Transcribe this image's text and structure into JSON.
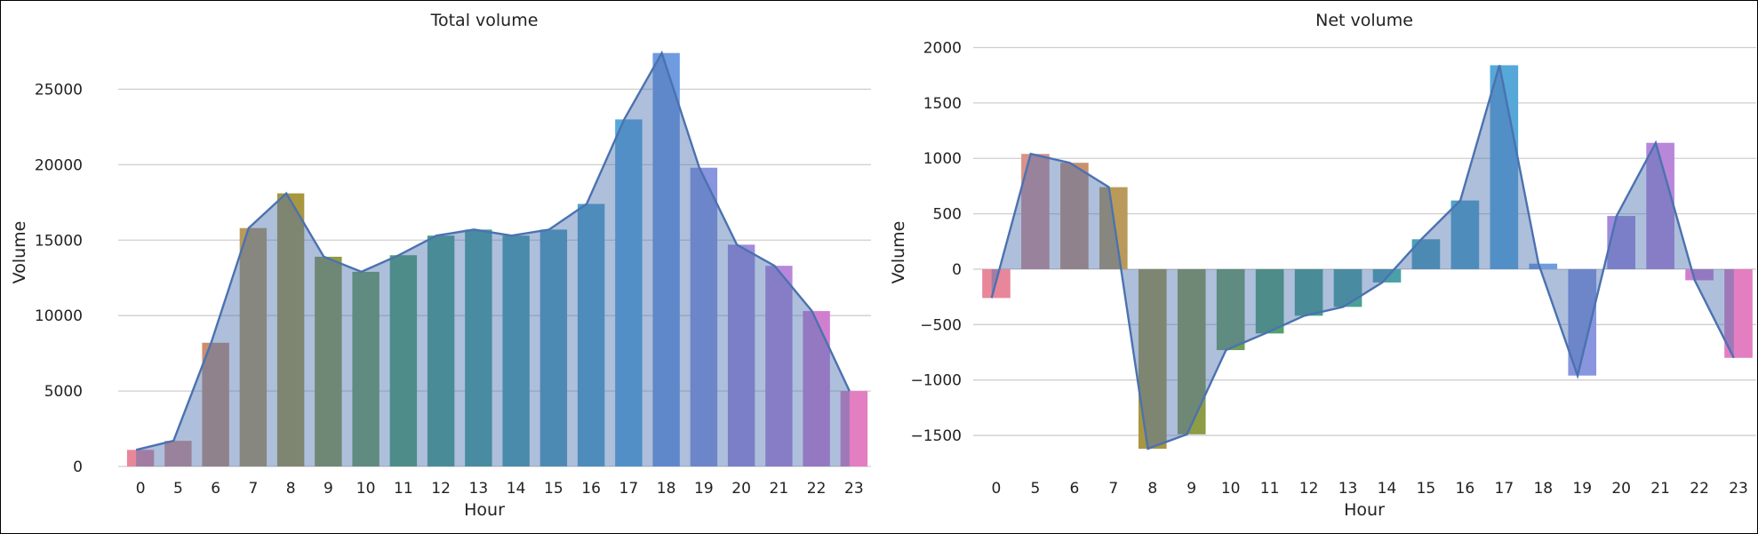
{
  "chart_data": [
    {
      "type": "bar",
      "title": "Total volume",
      "xlabel": "Hour",
      "ylabel": "Volume",
      "categories": [
        "0",
        "5",
        "6",
        "7",
        "8",
        "9",
        "10",
        "11",
        "12",
        "13",
        "14",
        "15",
        "16",
        "17",
        "18",
        "19",
        "20",
        "21",
        "22",
        "23"
      ],
      "values": [
        1100,
        1700,
        8200,
        15800,
        18100,
        13900,
        12900,
        14000,
        15300,
        15700,
        15300,
        15700,
        17400,
        23000,
        27400,
        19800,
        14700,
        13300,
        10300,
        5000
      ],
      "overlay": {
        "type": "area",
        "values": [
          1100,
          1700,
          8200,
          15800,
          18100,
          13900,
          12900,
          14000,
          15300,
          15700,
          15300,
          15700,
          17400,
          23000,
          27400,
          19800,
          14700,
          13300,
          10300,
          5000
        ]
      },
      "ylim": [
        0,
        28500
      ],
      "yticks": [
        0,
        5000,
        10000,
        15000,
        20000,
        25000
      ],
      "grid": true
    },
    {
      "type": "bar",
      "title": "Net volume",
      "xlabel": "Hour",
      "ylabel": "Volume",
      "categories": [
        "0",
        "5",
        "6",
        "7",
        "8",
        "9",
        "10",
        "11",
        "12",
        "13",
        "14",
        "15",
        "16",
        "17",
        "18",
        "19",
        "20",
        "21",
        "22",
        "23"
      ],
      "values": [
        -260,
        1040,
        960,
        740,
        -1620,
        -1490,
        -730,
        -580,
        -420,
        -340,
        -120,
        270,
        620,
        1840,
        50,
        -960,
        480,
        1140,
        -100,
        -800
      ],
      "overlay": {
        "type": "area",
        "values": [
          -260,
          1040,
          960,
          740,
          -1620,
          -1490,
          -730,
          -580,
          -420,
          -340,
          -120,
          270,
          620,
          1840,
          50,
          -960,
          480,
          1140,
          -100,
          -800
        ]
      },
      "ylim": [
        -1780,
        2100
      ],
      "yticks": [
        -1500,
        -1000,
        -500,
        0,
        500,
        1000,
        1500,
        2000
      ],
      "grid": true
    }
  ],
  "colors": [
    "#e8879a",
    "#d9918a",
    "#c9906f",
    "#b99a5a",
    "#a8973f",
    "#8d9c45",
    "#6fa05a",
    "#4fa26b",
    "#47a285",
    "#48a096",
    "#4aa0a8",
    "#4d9fb6",
    "#51a2c7",
    "#56a8d9",
    "#6f9ce0",
    "#8995de",
    "#a08bdc",
    "#b887da",
    "#d07fcf",
    "#e37ec0"
  ],
  "overlay_color": "#4b72b0"
}
